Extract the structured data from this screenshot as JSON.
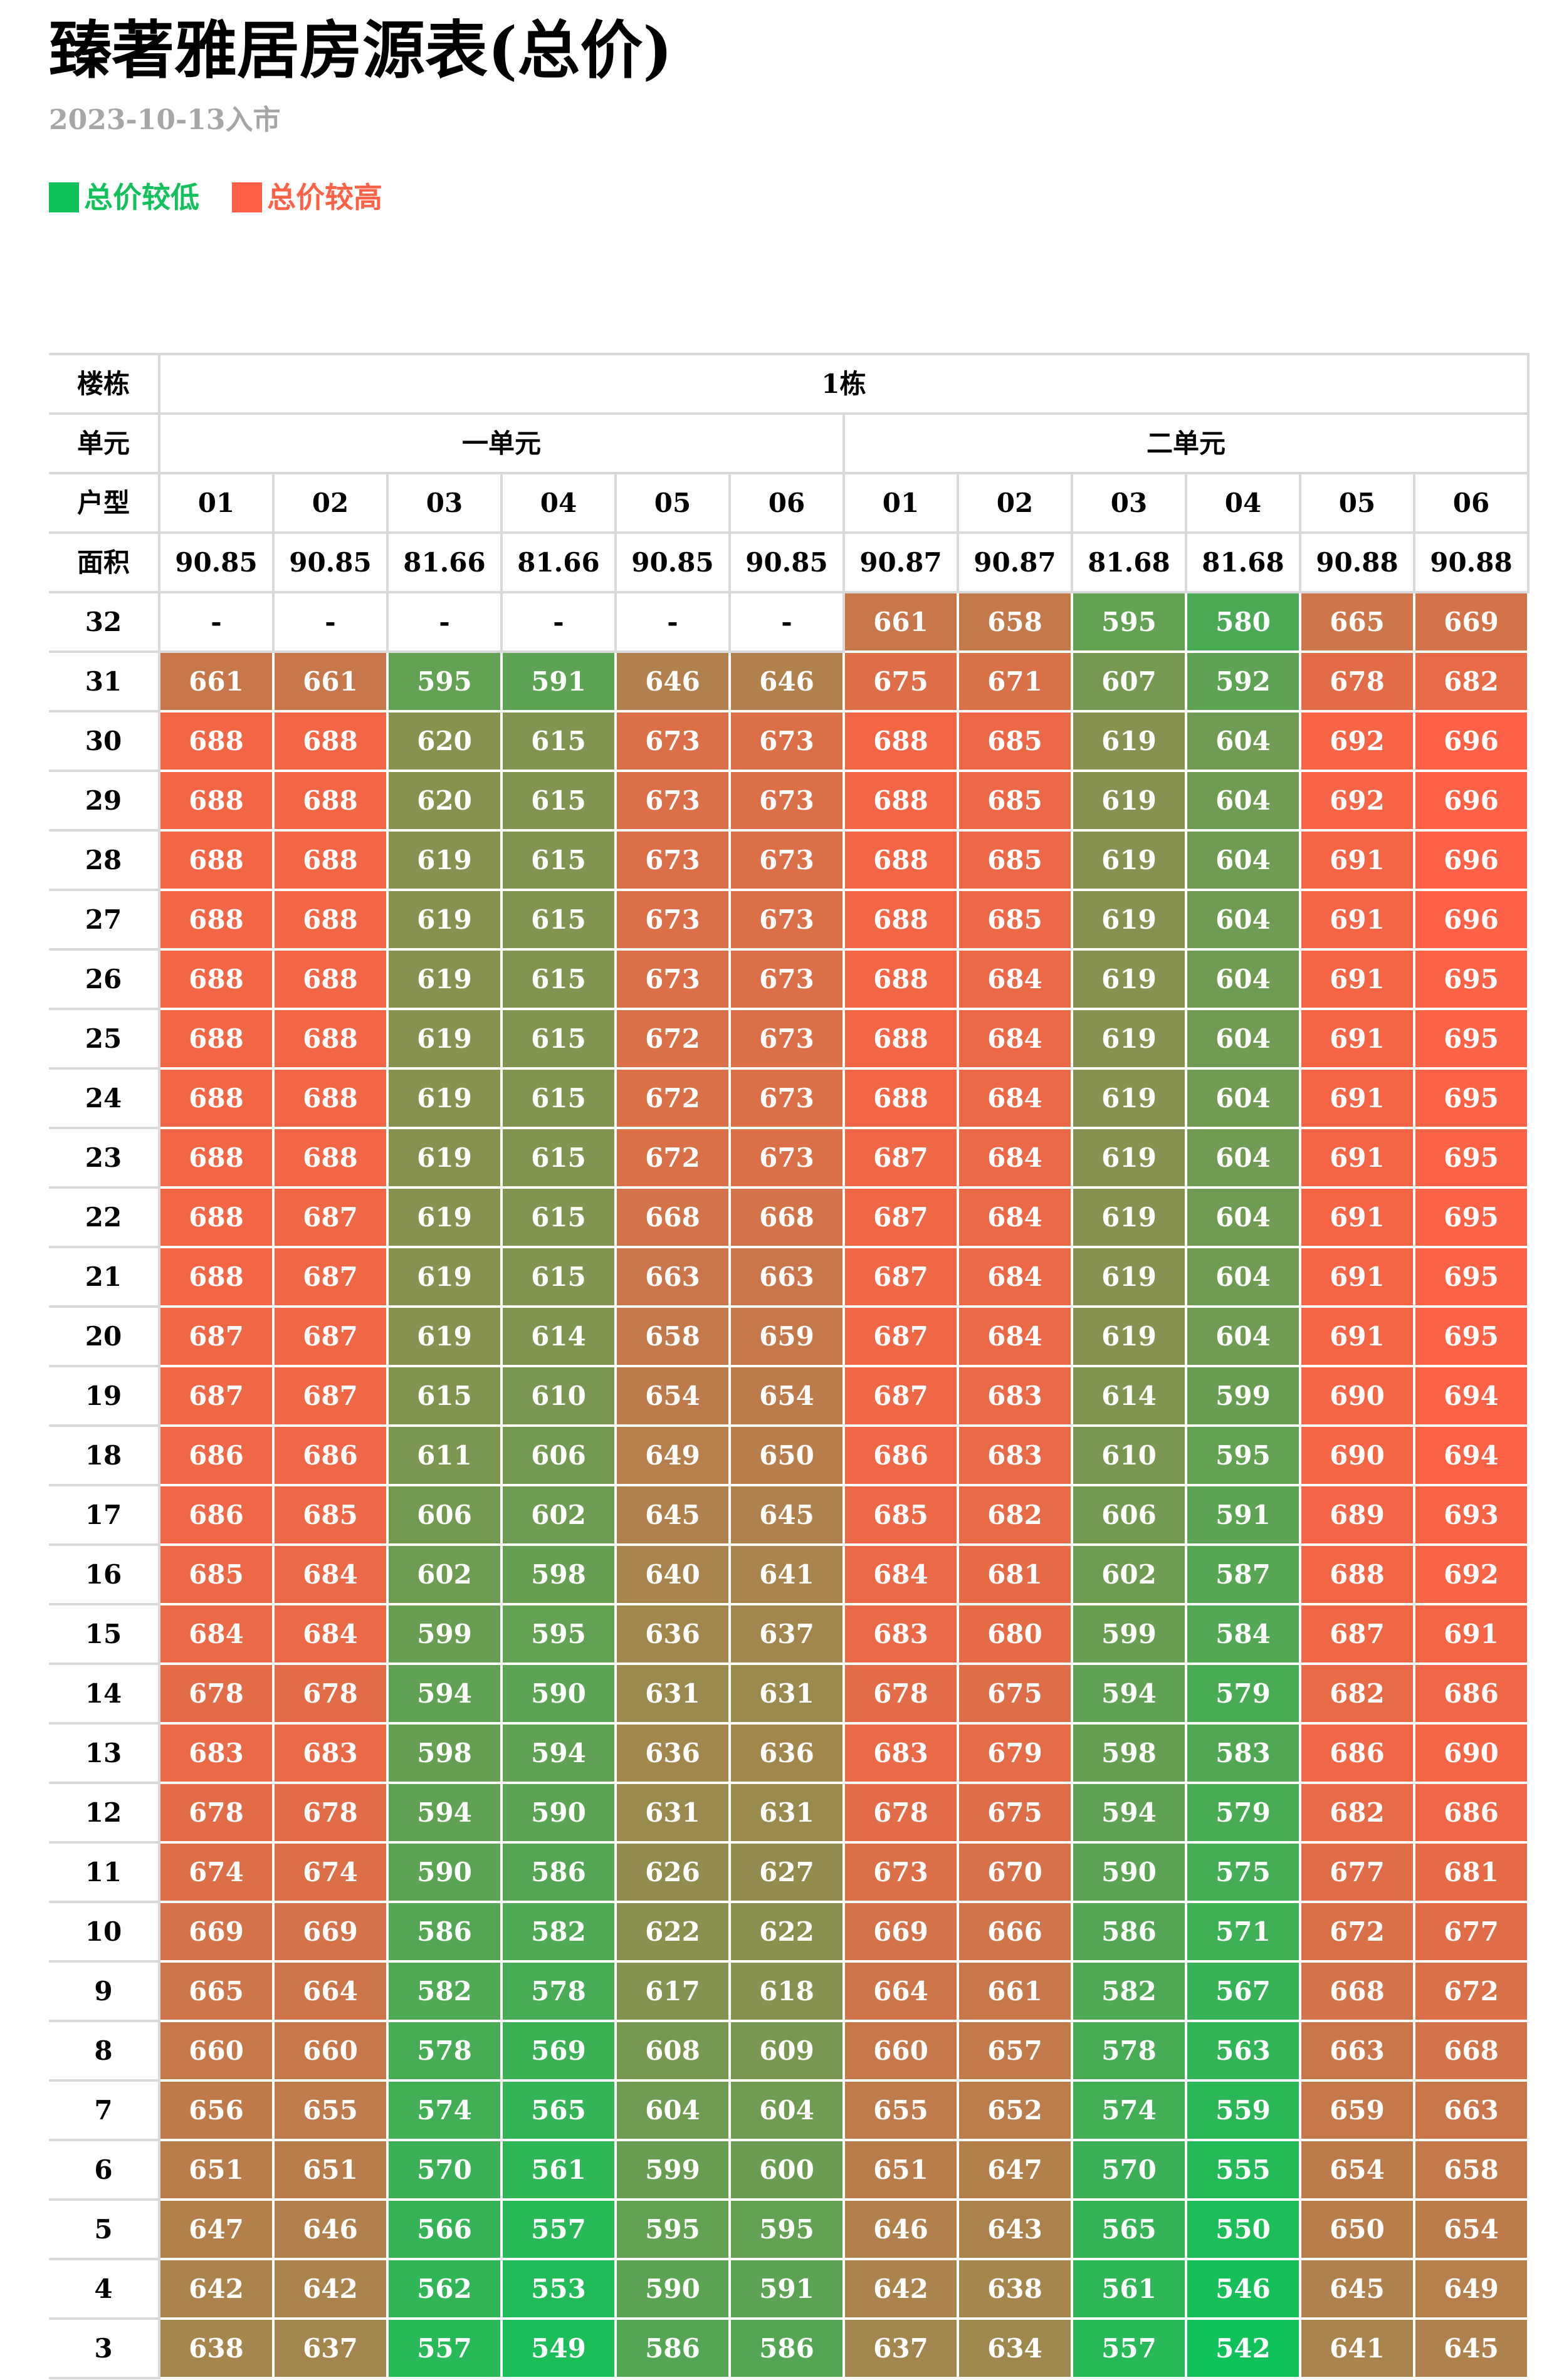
{
  "title": "臻著雅居房源表(总价)",
  "subtitle": "2023-10-13入市",
  "legend": [
    {
      "label": "总价较低",
      "color": "#11c25a"
    },
    {
      "label": "总价较高",
      "color": "#fe6145"
    }
  ],
  "scale": {
    "low_color": "#11c25a",
    "high_color": "#fe6145"
  },
  "table": {
    "header": {
      "building_label": "楼栋",
      "building": "1栋",
      "unit_label": "单元",
      "units": [
        {
          "name": "一单元",
          "span": 6
        },
        {
          "name": "二单元",
          "span": 6
        }
      ],
      "type_label": "户型",
      "types": [
        "01",
        "02",
        "03",
        "04",
        "05",
        "06",
        "01",
        "02",
        "03",
        "04",
        "05",
        "06"
      ],
      "area_label": "面积",
      "areas": [
        "90.85",
        "90.85",
        "81.66",
        "81.66",
        "90.85",
        "90.85",
        "90.87",
        "90.87",
        "81.68",
        "81.68",
        "90.88",
        "90.88"
      ]
    },
    "floors": [
      {
        "floor": "32",
        "prices": [
          "-",
          "-",
          "-",
          "-",
          "-",
          "-",
          "661",
          "658",
          "595",
          "580",
          "665",
          "669"
        ]
      },
      {
        "floor": "31",
        "prices": [
          "661",
          "661",
          "595",
          "591",
          "646",
          "646",
          "675",
          "671",
          "607",
          "592",
          "678",
          "682"
        ]
      },
      {
        "floor": "30",
        "prices": [
          "688",
          "688",
          "620",
          "615",
          "673",
          "673",
          "688",
          "685",
          "619",
          "604",
          "692",
          "696"
        ]
      },
      {
        "floor": "29",
        "prices": [
          "688",
          "688",
          "620",
          "615",
          "673",
          "673",
          "688",
          "685",
          "619",
          "604",
          "692",
          "696"
        ]
      },
      {
        "floor": "28",
        "prices": [
          "688",
          "688",
          "619",
          "615",
          "673",
          "673",
          "688",
          "685",
          "619",
          "604",
          "691",
          "696"
        ]
      },
      {
        "floor": "27",
        "prices": [
          "688",
          "688",
          "619",
          "615",
          "673",
          "673",
          "688",
          "685",
          "619",
          "604",
          "691",
          "696"
        ]
      },
      {
        "floor": "26",
        "prices": [
          "688",
          "688",
          "619",
          "615",
          "673",
          "673",
          "688",
          "684",
          "619",
          "604",
          "691",
          "695"
        ]
      },
      {
        "floor": "25",
        "prices": [
          "688",
          "688",
          "619",
          "615",
          "672",
          "673",
          "688",
          "684",
          "619",
          "604",
          "691",
          "695"
        ]
      },
      {
        "floor": "24",
        "prices": [
          "688",
          "688",
          "619",
          "615",
          "672",
          "673",
          "688",
          "684",
          "619",
          "604",
          "691",
          "695"
        ]
      },
      {
        "floor": "23",
        "prices": [
          "688",
          "688",
          "619",
          "615",
          "672",
          "673",
          "687",
          "684",
          "619",
          "604",
          "691",
          "695"
        ]
      },
      {
        "floor": "22",
        "prices": [
          "688",
          "687",
          "619",
          "615",
          "668",
          "668",
          "687",
          "684",
          "619",
          "604",
          "691",
          "695"
        ]
      },
      {
        "floor": "21",
        "prices": [
          "688",
          "687",
          "619",
          "615",
          "663",
          "663",
          "687",
          "684",
          "619",
          "604",
          "691",
          "695"
        ]
      },
      {
        "floor": "20",
        "prices": [
          "687",
          "687",
          "619",
          "614",
          "658",
          "659",
          "687",
          "684",
          "619",
          "604",
          "691",
          "695"
        ]
      },
      {
        "floor": "19",
        "prices": [
          "687",
          "687",
          "615",
          "610",
          "654",
          "654",
          "687",
          "683",
          "614",
          "599",
          "690",
          "694"
        ]
      },
      {
        "floor": "18",
        "prices": [
          "686",
          "686",
          "611",
          "606",
          "649",
          "650",
          "686",
          "683",
          "610",
          "595",
          "690",
          "694"
        ]
      },
      {
        "floor": "17",
        "prices": [
          "686",
          "685",
          "606",
          "602",
          "645",
          "645",
          "685",
          "682",
          "606",
          "591",
          "689",
          "693"
        ]
      },
      {
        "floor": "16",
        "prices": [
          "685",
          "684",
          "602",
          "598",
          "640",
          "641",
          "684",
          "681",
          "602",
          "587",
          "688",
          "692"
        ]
      },
      {
        "floor": "15",
        "prices": [
          "684",
          "684",
          "599",
          "595",
          "636",
          "637",
          "683",
          "680",
          "599",
          "584",
          "687",
          "691"
        ]
      },
      {
        "floor": "14",
        "prices": [
          "678",
          "678",
          "594",
          "590",
          "631",
          "631",
          "678",
          "675",
          "594",
          "579",
          "682",
          "686"
        ]
      },
      {
        "floor": "13",
        "prices": [
          "683",
          "683",
          "598",
          "594",
          "636",
          "636",
          "683",
          "679",
          "598",
          "583",
          "686",
          "690"
        ]
      },
      {
        "floor": "12",
        "prices": [
          "678",
          "678",
          "594",
          "590",
          "631",
          "631",
          "678",
          "675",
          "594",
          "579",
          "682",
          "686"
        ]
      },
      {
        "floor": "11",
        "prices": [
          "674",
          "674",
          "590",
          "586",
          "626",
          "627",
          "673",
          "670",
          "590",
          "575",
          "677",
          "681"
        ]
      },
      {
        "floor": "10",
        "prices": [
          "669",
          "669",
          "586",
          "582",
          "622",
          "622",
          "669",
          "666",
          "586",
          "571",
          "672",
          "677"
        ]
      },
      {
        "floor": "9",
        "prices": [
          "665",
          "664",
          "582",
          "578",
          "617",
          "618",
          "664",
          "661",
          "582",
          "567",
          "668",
          "672"
        ]
      },
      {
        "floor": "8",
        "prices": [
          "660",
          "660",
          "578",
          "569",
          "608",
          "609",
          "660",
          "657",
          "578",
          "563",
          "663",
          "668"
        ]
      },
      {
        "floor": "7",
        "prices": [
          "656",
          "655",
          "574",
          "565",
          "604",
          "604",
          "655",
          "652",
          "574",
          "559",
          "659",
          "663"
        ]
      },
      {
        "floor": "6",
        "prices": [
          "651",
          "651",
          "570",
          "561",
          "599",
          "600",
          "651",
          "647",
          "570",
          "555",
          "654",
          "658"
        ]
      },
      {
        "floor": "5",
        "prices": [
          "647",
          "646",
          "566",
          "557",
          "595",
          "595",
          "646",
          "643",
          "565",
          "550",
          "650",
          "654"
        ]
      },
      {
        "floor": "4",
        "prices": [
          "642",
          "642",
          "562",
          "553",
          "590",
          "591",
          "642",
          "638",
          "561",
          "546",
          "645",
          "649"
        ]
      },
      {
        "floor": "3",
        "prices": [
          "638",
          "637",
          "557",
          "549",
          "586",
          "586",
          "637",
          "634",
          "557",
          "542",
          "641",
          "645"
        ]
      }
    ]
  }
}
